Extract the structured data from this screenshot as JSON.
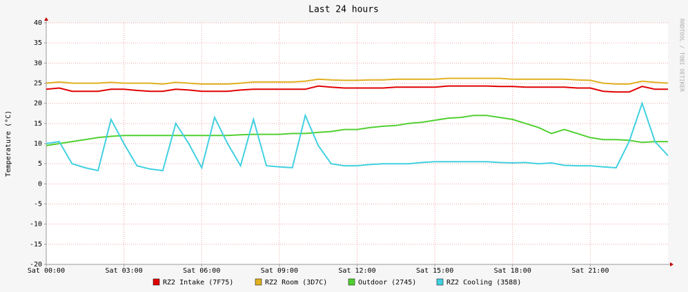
{
  "chart_data": {
    "type": "line",
    "title": "Last 24 hours",
    "y_label": "Temperature (°C)",
    "watermark": "RRDTOOL / TOBI OETIKER",
    "x": [
      0,
      0.5,
      1,
      1.5,
      2,
      2.5,
      3,
      3.5,
      4,
      4.5,
      5,
      5.5,
      6,
      6.5,
      7,
      7.5,
      8,
      8.5,
      9,
      9.5,
      10,
      10.5,
      11,
      11.5,
      12,
      12.5,
      13,
      13.5,
      14,
      14.5,
      15,
      15.5,
      16,
      16.5,
      17,
      17.5,
      18,
      18.5,
      19,
      19.5,
      20,
      20.5,
      21,
      21.5,
      22,
      22.5,
      23,
      23.5,
      24
    ],
    "xlim": [
      0,
      24
    ],
    "xticks": [
      {
        "value": 0,
        "label": "Sat 00:00"
      },
      {
        "value": 3,
        "label": "Sat 03:00"
      },
      {
        "value": 6,
        "label": "Sat 06:00"
      },
      {
        "value": 9,
        "label": "Sat 09:00"
      },
      {
        "value": 12,
        "label": "Sat 12:00"
      },
      {
        "value": 15,
        "label": "Sat 15:00"
      },
      {
        "value": 18,
        "label": "Sat 18:00"
      },
      {
        "value": 21,
        "label": "Sat 21:00"
      }
    ],
    "ylim": [
      -20,
      40
    ],
    "yticks": [
      -20,
      -15,
      -10,
      -5,
      0,
      5,
      10,
      15,
      20,
      25,
      30,
      35,
      40
    ],
    "grid": true,
    "series": [
      {
        "name": "RZ2 Intake (7F75)",
        "color": "#e00000",
        "values": [
          23.5,
          23.8,
          23,
          23,
          23,
          23.5,
          23.5,
          23.2,
          23,
          23,
          23.5,
          23.3,
          23,
          23,
          23,
          23.3,
          23.5,
          23.5,
          23.5,
          23.5,
          23.5,
          24.3,
          24,
          23.8,
          23.8,
          23.8,
          23.8,
          24,
          24,
          24,
          24,
          24.3,
          24.3,
          24.3,
          24.3,
          24.2,
          24.2,
          24,
          24,
          24,
          24,
          23.8,
          23.8,
          23,
          22.8,
          22.8,
          24.2,
          23.5,
          23.5
        ]
      },
      {
        "name": "RZ2 Room (3D7C)",
        "color": "#e0b020",
        "values": [
          25,
          25.3,
          25,
          25,
          25,
          25.2,
          25,
          25,
          25,
          24.8,
          25.2,
          25,
          24.8,
          24.8,
          24.8,
          25,
          25.3,
          25.3,
          25.3,
          25.3,
          25.5,
          26,
          25.8,
          25.7,
          25.7,
          25.8,
          25.8,
          26,
          26,
          26,
          26,
          26.2,
          26.2,
          26.2,
          26.2,
          26.2,
          26,
          26,
          26,
          26,
          26,
          25.8,
          25.7,
          25,
          24.8,
          24.8,
          25.5,
          25.2,
          25
        ]
      },
      {
        "name": "Outdoor (2745)",
        "color": "#50d030",
        "values": [
          9.5,
          10,
          10.5,
          11,
          11.5,
          11.8,
          12,
          12,
          12,
          12,
          12,
          12,
          12,
          12,
          12,
          12.2,
          12.3,
          12.3,
          12.3,
          12.5,
          12.5,
          12.8,
          13,
          13.5,
          13.5,
          14,
          14.3,
          14.5,
          15,
          15.3,
          15.8,
          16.3,
          16.5,
          17,
          17,
          16.5,
          16,
          15,
          14,
          12.5,
          13.5,
          12.5,
          11.5,
          11,
          11,
          10.8,
          10.3,
          10.5,
          10.5
        ]
      },
      {
        "name": "RZ2 Cooling (3588)",
        "color": "#40d0e0",
        "values": [
          10,
          10.5,
          5,
          4,
          3.3,
          16,
          10,
          4.5,
          3.7,
          3.3,
          15,
          10,
          4,
          16.5,
          10,
          4.5,
          16,
          4.5,
          4.2,
          4,
          17,
          9.5,
          5,
          4.5,
          4.5,
          4.8,
          5,
          5,
          5,
          5.3,
          5.5,
          5.5,
          5.5,
          5.5,
          5.5,
          5.3,
          5.2,
          5.3,
          5,
          5.2,
          4.6,
          4.5,
          4.5,
          4.2,
          4,
          10.5,
          20,
          10.5,
          7
        ]
      }
    ]
  }
}
